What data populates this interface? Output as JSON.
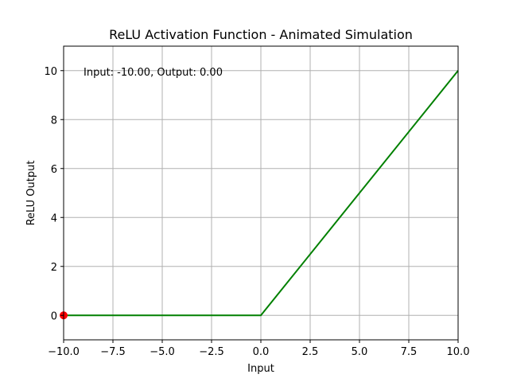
{
  "chart_data": {
    "type": "line",
    "title": "ReLU Activation Function - Animated Simulation",
    "xlabel": "Input",
    "ylabel": "ReLU Output",
    "xlim": [
      -10,
      10
    ],
    "ylim": [
      -1,
      11
    ],
    "xticks": [
      -10,
      -7.5,
      -5,
      -2.5,
      0,
      2.5,
      5,
      7.5,
      10
    ],
    "xtick_labels": [
      "−10.0",
      "−7.5",
      "−5.0",
      "−2.5",
      "0.0",
      "2.5",
      "5.0",
      "7.5",
      "10.0"
    ],
    "yticks": [
      0,
      2,
      4,
      6,
      8,
      10
    ],
    "ytick_labels": [
      "0",
      "2",
      "4",
      "6",
      "8",
      "10"
    ],
    "grid": true,
    "series": [
      {
        "color": "#008000",
        "x": [
          -10,
          0,
          10
        ],
        "y": [
          0,
          0,
          10
        ]
      }
    ],
    "marker": {
      "x": -10,
      "y": 0,
      "color": "#ff0000"
    },
    "annotation": "Input: -10.00, Output: 0.00"
  }
}
